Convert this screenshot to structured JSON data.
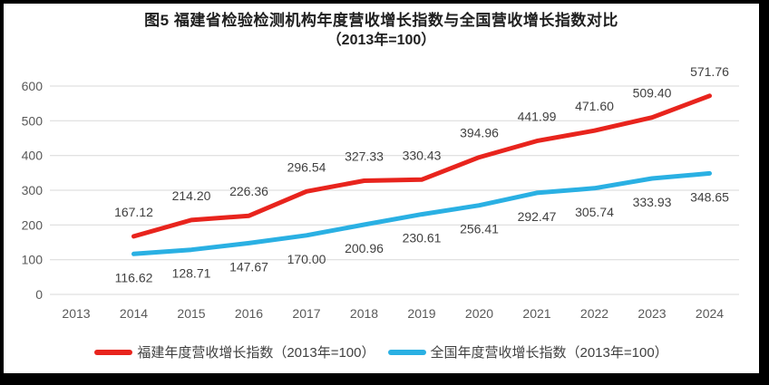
{
  "title": {
    "line1": "图5  福建省检验检测机构年度营收增长指数与全国营收增长指数对比",
    "line2": "（2013年=100）"
  },
  "chart_data": {
    "type": "line",
    "title": "图5 福建省检验检测机构年度营收增长指数与全国营收增长指数对比（2013年=100）",
    "x": [
      2013,
      2014,
      2015,
      2016,
      2017,
      2018,
      2019,
      2020,
      2021,
      2022,
      2023,
      2024
    ],
    "series": [
      {
        "id": "fujian",
        "name": "福建年度营收增长指数（2013年=100）",
        "color": "#e8241d",
        "label_position": "above",
        "values": [
          null,
          167.12,
          214.2,
          226.36,
          296.54,
          327.33,
          330.43,
          394.96,
          441.99,
          471.6,
          509.4,
          571.76
        ]
      },
      {
        "id": "national",
        "name": "全国年度营收增长指数（2013年=100）",
        "color": "#2ab0e3",
        "label_position": "below",
        "values": [
          null,
          116.62,
          128.71,
          147.67,
          170.0,
          200.96,
          230.61,
          256.41,
          292.47,
          305.74,
          333.93,
          348.65
        ]
      }
    ],
    "ylim": [
      0,
      600
    ],
    "ytick_step": 100,
    "grid": true,
    "gridline_color": "#d9d9d9",
    "axis_text_color": "#595959",
    "data_label_color": "#404040",
    "legend_position": "bottom"
  }
}
